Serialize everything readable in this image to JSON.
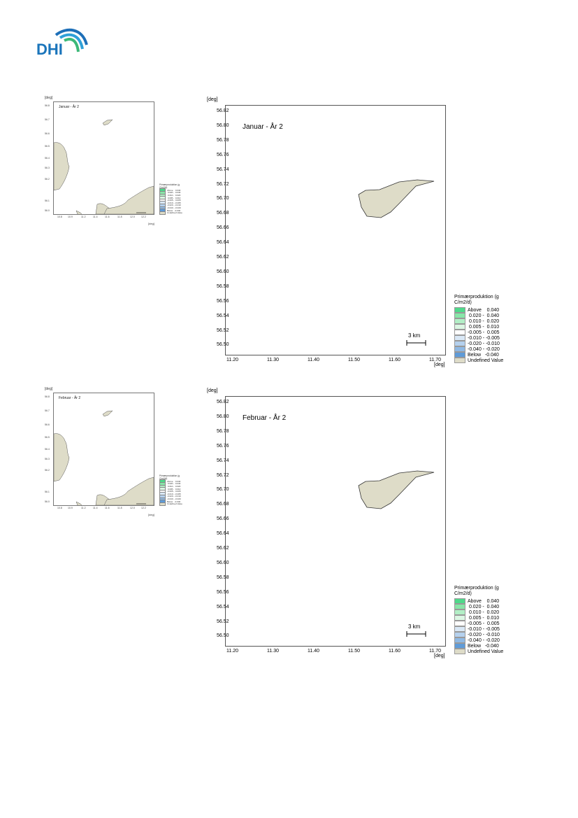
{
  "logo": {
    "text": "DHI",
    "icon": "dhi-wave-logo"
  },
  "colors": {
    "land": "#dedcc8",
    "wave_dark": "#1d6fb8",
    "wave_mid": "#2fa0d8",
    "wave_green": "#3cb878",
    "logo_text": "#1b75bb"
  },
  "axis_units": {
    "y": "[deg]",
    "x": "[deg]"
  },
  "y_ticks": [
    "56.82",
    "56.80",
    "56.78",
    "56.76",
    "56.74",
    "56.72",
    "56.70",
    "56.68",
    "56.66",
    "56.64",
    "56.62",
    "56.60",
    "56.58",
    "56.56",
    "56.54",
    "56.52",
    "56.50"
  ],
  "x_ticks": [
    "11.20",
    "11.30",
    "11.40",
    "11.50",
    "11.60",
    "11.70"
  ],
  "scale_bar": "3 km",
  "legend": {
    "title": "Primærproduktion (g C/m2/d)",
    "entries": [
      {
        "label": "Above    0.040",
        "color": "#4fd98a"
      },
      {
        "label": " 0.020 -  0.040",
        "color": "#88e6a8"
      },
      {
        "label": " 0.010 -  0.020",
        "color": "#b2efc6"
      },
      {
        "label": " 0.005 -  0.010",
        "color": "#dcf7e4"
      },
      {
        "label": "-0.005 -  0.005",
        "color": "#ffffff"
      },
      {
        "label": "-0.010 - -0.005",
        "color": "#d9e8f6"
      },
      {
        "label": "-0.020 - -0.010",
        "color": "#b5d1ee"
      },
      {
        "label": "-0.040 - -0.020",
        "color": "#8fb9e4"
      },
      {
        "label": "Below   -0.040",
        "color": "#5f9bd8"
      },
      {
        "label": "Undefined Value",
        "color": "#dedcc8"
      }
    ]
  },
  "overview": {
    "y_ticks": [
      "56.8",
      "56.7",
      "56.6",
      "56.5",
      "56.4",
      "56.3",
      "56.2",
      "56.1",
      "56.0"
    ],
    "x_ticks": [
      "10.8",
      "10.9",
      "11.2",
      "11.4",
      "11.6",
      "11.8",
      "12.0",
      "12.2"
    ],
    "scale_bar": "10 km"
  },
  "maps": [
    {
      "title": "Januar - År 2",
      "overview_title": "Januar - År 2"
    },
    {
      "title": "Februar - År 2",
      "overview_title": "Februar - År 2"
    }
  ]
}
